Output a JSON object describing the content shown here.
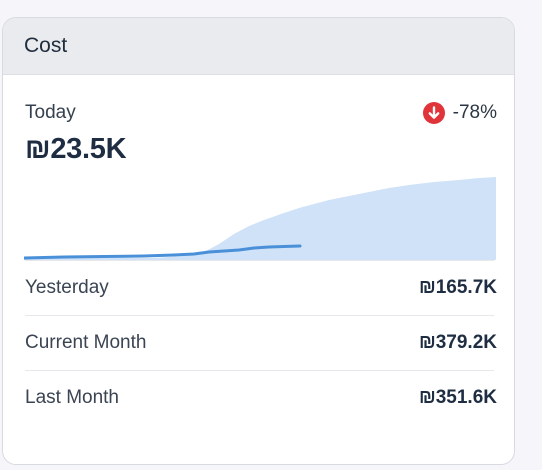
{
  "card": {
    "title": "Cost",
    "today": {
      "label": "Today",
      "value": "₪23.5K",
      "change": "-78%",
      "change_icon": "arrow-down-circle-icon",
      "change_color": "#e0343a"
    },
    "sparkline": {
      "today_color": "#4a90d9",
      "previous_fill_color": "#cfe2f8",
      "today_fraction_of_day": 0.585
    },
    "stats": [
      {
        "label": "Yesterday",
        "value": "₪165.7K"
      },
      {
        "label": "Current Month",
        "value": "₪379.2K"
      },
      {
        "label": "Last Month",
        "value": "₪351.6K"
      }
    ]
  }
}
